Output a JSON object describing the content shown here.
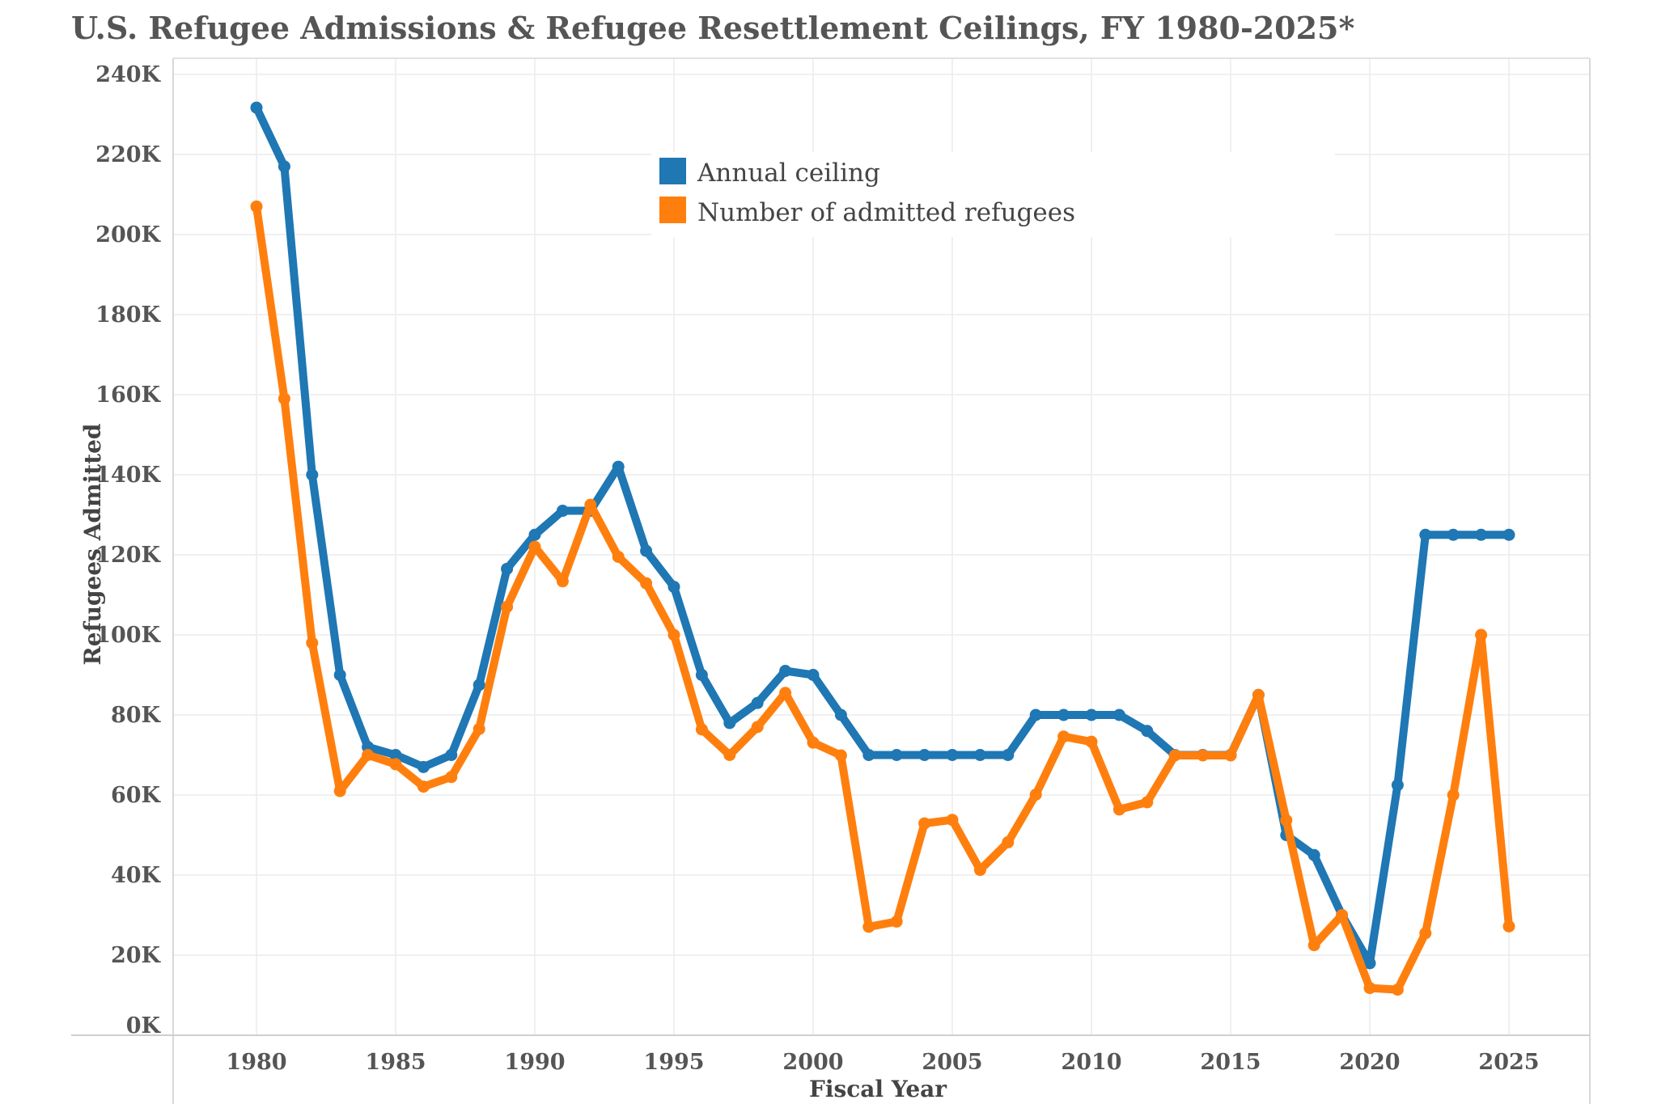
{
  "chart_data": {
    "type": "line",
    "title": "U.S. Refugee Admissions & Refugee Resettlement Ceilings, FY 1980-2025*",
    "xlabel": "Fiscal Year",
    "ylabel": "Refugees Admitted",
    "xlim": [
      1977,
      2028
    ],
    "ylim": [
      0,
      240000
    ],
    "y_ticks": [
      0,
      20000,
      40000,
      60000,
      80000,
      100000,
      120000,
      140000,
      160000,
      180000,
      200000,
      220000,
      240000
    ],
    "y_tick_labels": [
      "0K",
      "20K",
      "40K",
      "60K",
      "80K",
      "100K",
      "120K",
      "140K",
      "160K",
      "180K",
      "200K",
      "220K",
      "240K"
    ],
    "x_ticks": [
      1980,
      1985,
      1990,
      1995,
      2000,
      2005,
      2010,
      2015,
      2020,
      2025
    ],
    "x_tick_labels": [
      "1980",
      "1985",
      "1990",
      "1995",
      "2000",
      "2005",
      "2010",
      "2015",
      "2020",
      "2025"
    ],
    "grid": true,
    "legend_position": "top-center",
    "x": [
      1980,
      1981,
      1982,
      1983,
      1984,
      1985,
      1986,
      1987,
      1988,
      1989,
      1990,
      1991,
      1992,
      1993,
      1994,
      1995,
      1996,
      1997,
      1998,
      1999,
      2000,
      2001,
      2002,
      2003,
      2004,
      2005,
      2006,
      2007,
      2008,
      2009,
      2010,
      2011,
      2012,
      2013,
      2014,
      2015,
      2016,
      2017,
      2018,
      2019,
      2020,
      2021,
      2022,
      2023,
      2024,
      2025
    ],
    "series": [
      {
        "name": "Annual ceiling",
        "color": "#1f77b4",
        "values": [
          231700,
          217000,
          140000,
          90000,
          72000,
          70000,
          67000,
          70000,
          87500,
          116500,
          125000,
          131000,
          131000,
          142000,
          121000,
          112000,
          90000,
          78000,
          83000,
          91000,
          90000,
          80000,
          70000,
          70000,
          70000,
          70000,
          70000,
          70000,
          80000,
          80000,
          80000,
          80000,
          76000,
          70000,
          70000,
          70000,
          85000,
          50000,
          45000,
          30000,
          18000,
          62500,
          125000,
          125000,
          125000,
          125000
        ]
      },
      {
        "name": "Number of admitted refugees",
        "color": "#ff7f0e",
        "values": [
          207000,
          159000,
          98000,
          61000,
          70000,
          67700,
          62100,
          64500,
          76500,
          107000,
          122000,
          113400,
          132500,
          119500,
          112900,
          100000,
          76400,
          70000,
          77000,
          85500,
          73100,
          69900,
          27100,
          28400,
          52900,
          53800,
          41300,
          48200,
          60100,
          74600,
          73300,
          56400,
          58200,
          69900,
          69900,
          69900,
          85000,
          53700,
          22500,
          30000,
          11800,
          11400,
          25500,
          60000,
          100000,
          27200
        ]
      }
    ]
  }
}
